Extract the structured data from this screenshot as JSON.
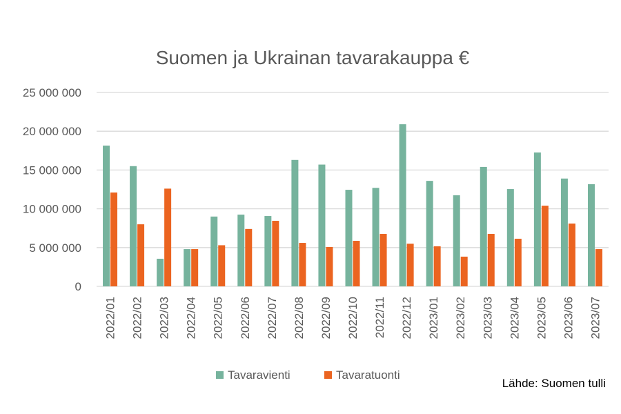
{
  "chart_data": {
    "type": "bar",
    "title": "Suomen ja Ukrainan tavarakauppa €",
    "xlabel": "",
    "ylabel": "",
    "ylim": [
      0,
      25000000
    ],
    "yticks": [
      0,
      5000000,
      10000000,
      15000000,
      20000000,
      25000000
    ],
    "ytick_labels": [
      "0",
      "5 000 000",
      "10 000 000",
      "15 000 000",
      "20 000 000",
      "25 000 000"
    ],
    "grid": true,
    "legend_position": "bottom",
    "categories": [
      "2022/01",
      "2022/02",
      "2022/03",
      "2022/04",
      "2022/05",
      "2022/06",
      "2022/07",
      "2022/08",
      "2022/09",
      "2022/10",
      "2022/11",
      "2022/12",
      "2023/01",
      "2023/02",
      "2023/03",
      "2023/04",
      "2023/05",
      "2023/06",
      "2023/07"
    ],
    "series": [
      {
        "name": "Tavaravienti",
        "color": "#76b39d",
        "values": [
          18150000,
          15500000,
          3560000,
          4800000,
          9000000,
          9250000,
          9070000,
          16300000,
          15700000,
          12450000,
          12700000,
          20900000,
          13600000,
          11740000,
          15400000,
          12540000,
          17260000,
          13900000,
          13170000
        ]
      },
      {
        "name": "Tavaratuonti",
        "color": "#eb6420",
        "values": [
          12100000,
          8000000,
          12600000,
          4800000,
          5300000,
          7400000,
          8450000,
          5600000,
          5070000,
          5870000,
          6760000,
          5500000,
          5160000,
          3830000,
          6760000,
          6140000,
          10400000,
          8100000,
          4800000
        ]
      }
    ],
    "source": "Lähde: Suomen tulli"
  }
}
